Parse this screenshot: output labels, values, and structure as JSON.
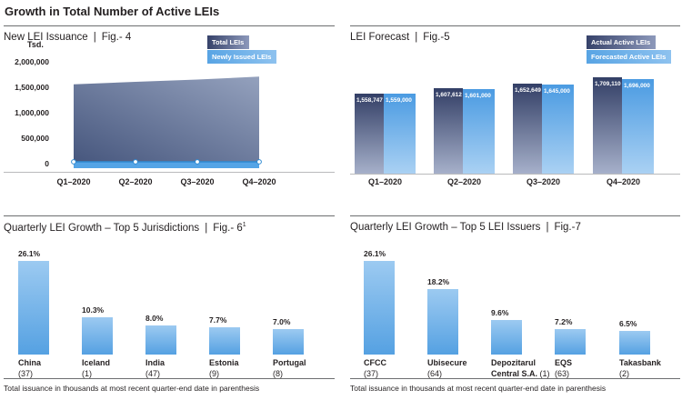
{
  "page_title": "Growth in Total Number of Active LEIs",
  "footnote": {
    "text": "Total issuance in thousands at most recent quarter-end date in parenthesis"
  },
  "colors": {
    "text": "#231f20",
    "rule_grey": "#6d6e70",
    "axis_grey": "#b9babc",
    "dark_navy": "#333f66",
    "dark_navy_fade": "#a6b0ca",
    "light_blue": "#4b9be2",
    "light_blue_fade": "#aad1f3",
    "band_blue": "#54a4e6",
    "band_edge_blue": "#2e8ad2",
    "area_dark": "#47577e",
    "area_light": "#94a1bd"
  },
  "chart_data": [
    {
      "id": "fig4",
      "type": "area",
      "title": "New LEI Issuance",
      "fig_label": "Fig.- 4",
      "unit_label": "Tsd.",
      "legend": [
        "Total LEIs",
        "Newly Issued LEIs"
      ],
      "legend_position": "top-right",
      "x": [
        "Q1–2020",
        "Q2–2020",
        "Q3–2020",
        "Q4–2020"
      ],
      "series": [
        {
          "name": "Total LEIs",
          "values": [
            1558747,
            1607612,
            1652649,
            1709110
          ]
        },
        {
          "name": "Newly Issued LEIs",
          "values": [
            50000,
            50000,
            50000,
            50000
          ],
          "note": "approximate values read from thin band near zero"
        }
      ],
      "ylim": [
        0,
        2000000
      ],
      "y_ticks": [
        2000000,
        1500000,
        1000000,
        500000,
        0
      ],
      "y_tick_labels": [
        "2,000,000",
        "1,500,000",
        "1,000,000",
        "500,000",
        "0"
      ],
      "grid": false
    },
    {
      "id": "fig5",
      "type": "bar",
      "title": "LEI Forecast",
      "fig_label": "Fig.-5",
      "legend": [
        "Actual Active LEIs",
        "Forecasted Active LEIs"
      ],
      "legend_position": "top-right",
      "categories": [
        "Q1–2020",
        "Q2–2020",
        "Q3–2020",
        "Q4–2020"
      ],
      "series": [
        {
          "name": "Actual Active LEIs",
          "values": [
            1558747,
            1607612,
            1652649,
            1709110
          ],
          "labels": [
            "1,558,747",
            "1,607,612",
            "1,652,649",
            "1,709,110"
          ]
        },
        {
          "name": "Forecasted Active LEIs",
          "values": [
            1559000,
            1601000,
            1645000,
            1696000
          ],
          "labels": [
            "1,559,000",
            "1,601,000",
            "1,645,000",
            "1,696,000"
          ]
        }
      ],
      "data_labels": "inside-top",
      "grid": false
    },
    {
      "id": "fig6",
      "type": "bar",
      "title": "Quarterly LEI Growth – Top 5 Jurisdictions",
      "fig_label": "Fig.- 6",
      "fig_superscript": "1",
      "unit": "%",
      "bars": [
        {
          "value": 26.1,
          "label": "26.1%",
          "name": "China",
          "count": "(37)",
          "lines": [
            {
              "b": "China"
            },
            {
              "n": "(37)"
            }
          ]
        },
        {
          "value": 10.3,
          "label": "10.3%",
          "name": "Iceland",
          "count": "(1)",
          "lines": [
            {
              "b": "Iceland"
            },
            {
              "n": "(1)"
            }
          ]
        },
        {
          "value": 8.0,
          "label": "8.0%",
          "name": "India",
          "count": "(47)",
          "lines": [
            {
              "b": "India"
            },
            {
              "n": "(47)"
            }
          ]
        },
        {
          "value": 7.7,
          "label": "7.7%",
          "name": "Estonia",
          "count": "(9)",
          "lines": [
            {
              "b": "Estonia"
            },
            {
              "n": "(9)"
            }
          ]
        },
        {
          "value": 7.0,
          "label": "7.0%",
          "name": "Portugal",
          "count": "(8)",
          "lines": [
            {
              "b": "Portugal"
            },
            {
              "n": "(8)"
            }
          ]
        }
      ]
    },
    {
      "id": "fig7",
      "type": "bar",
      "title": "Quarterly LEI Growth – Top 5 LEI Issuers",
      "fig_label": "Fig.-7",
      "unit": "%",
      "bars": [
        {
          "value": 26.1,
          "label": "26.1%",
          "name": "CFCC",
          "count": "(37)",
          "lines": [
            {
              "b": "CFCC"
            },
            {
              "n": "(37)"
            }
          ]
        },
        {
          "value": 18.2,
          "label": "18.2%",
          "name": "Ubisecure",
          "count": "(64)",
          "lines": [
            {
              "b": "Ubisecure"
            },
            {
              "n": "(64)"
            }
          ]
        },
        {
          "value": 9.6,
          "label": "9.6%",
          "name": "Depozitarul Central S.A.",
          "count": "(1)",
          "lines": [
            {
              "b": "Depozitarul"
            },
            {
              "b": "Central S.A.",
              "n": "(1)"
            }
          ]
        },
        {
          "value": 7.2,
          "label": "7.2%",
          "name": "EQS",
          "count": "(63)",
          "lines": [
            {
              "b": "EQS"
            },
            {
              "n": "(63)"
            }
          ]
        },
        {
          "value": 6.5,
          "label": "6.5%",
          "name": "Takasbank",
          "count": "(2)",
          "lines": [
            {
              "b": "Takasbank"
            },
            {
              "n": "(2)"
            }
          ]
        }
      ]
    }
  ]
}
